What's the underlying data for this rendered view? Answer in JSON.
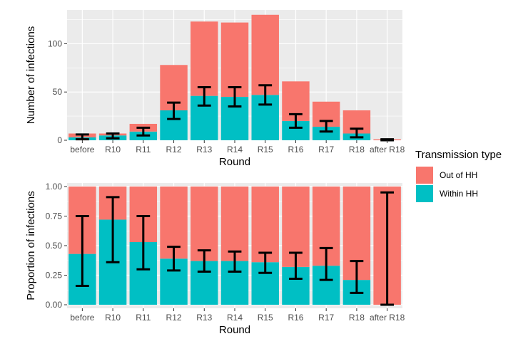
{
  "colors": {
    "out_of_hh": "#F8766D",
    "within_hh": "#00BFC4",
    "panel_bg": "#EBEBEB",
    "grid": "#FFFFFF",
    "errorbar": "#000000"
  },
  "legend": {
    "title": "Transmission type",
    "items": [
      {
        "label": "Out of HH",
        "color": "#F8766D"
      },
      {
        "label": "Within HH",
        "color": "#00BFC4"
      }
    ]
  },
  "chart_data": [
    {
      "type": "bar",
      "stacked": true,
      "categories": [
        "before",
        "R10",
        "R11",
        "R12",
        "R13",
        "R14",
        "R15",
        "R16",
        "R17",
        "R18",
        "after R18"
      ],
      "xlabel": "Round",
      "ylabel": "Number of infections",
      "ylim": [
        0,
        135
      ],
      "yticks": [
        0,
        50,
        100
      ],
      "series": [
        {
          "name": "Within HH",
          "values": [
            3,
            5,
            9,
            31,
            46,
            45,
            47,
            20,
            14,
            7,
            0
          ]
        },
        {
          "name": "Out of HH",
          "values": [
            4,
            2,
            8,
            47,
            77,
            77,
            83,
            41,
            26,
            24,
            1
          ]
        }
      ],
      "errorbars": {
        "series": "Within HH",
        "lower": [
          1,
          2,
          5,
          22,
          36,
          35,
          37,
          13,
          9,
          3,
          0
        ],
        "upper": [
          6,
          7,
          13,
          39,
          55,
          55,
          57,
          27,
          20,
          12,
          1
        ]
      },
      "grid": true,
      "legend_position": "right"
    },
    {
      "type": "bar",
      "stacked": true,
      "categories": [
        "before",
        "R10",
        "R11",
        "R12",
        "R13",
        "R14",
        "R15",
        "R16",
        "R17",
        "R18",
        "after R18"
      ],
      "xlabel": "Round",
      "ylabel": "Proportion of infections",
      "ylim": [
        -0.03,
        1.03
      ],
      "yticks": [
        0.0,
        0.25,
        0.5,
        0.75,
        1.0
      ],
      "ytick_labels": [
        "0.00",
        "0.25",
        "0.50",
        "0.75",
        "1.00"
      ],
      "series": [
        {
          "name": "Within HH",
          "values": [
            0.43,
            0.72,
            0.53,
            0.39,
            0.37,
            0.37,
            0.36,
            0.32,
            0.33,
            0.21,
            0.0
          ]
        },
        {
          "name": "Out of HH",
          "values": [
            0.57,
            0.28,
            0.47,
            0.61,
            0.63,
            0.63,
            0.64,
            0.68,
            0.67,
            0.79,
            1.0
          ]
        }
      ],
      "errorbars": {
        "series": "Within HH",
        "lower": [
          0.16,
          0.36,
          0.3,
          0.29,
          0.28,
          0.28,
          0.27,
          0.22,
          0.21,
          0.1,
          0.0
        ],
        "upper": [
          0.75,
          0.91,
          0.75,
          0.49,
          0.46,
          0.45,
          0.44,
          0.44,
          0.48,
          0.37,
          0.95
        ]
      },
      "grid": true,
      "legend_position": "right"
    }
  ]
}
